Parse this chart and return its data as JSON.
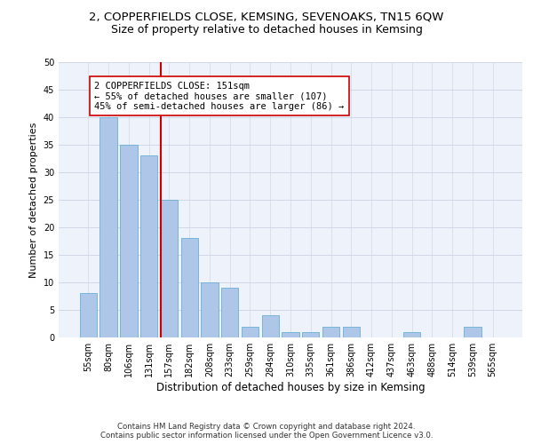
{
  "title1": "2, COPPERFIELDS CLOSE, KEMSING, SEVENOAKS, TN15 6QW",
  "title2": "Size of property relative to detached houses in Kemsing",
  "xlabel": "Distribution of detached houses by size in Kemsing",
  "ylabel": "Number of detached properties",
  "footnote1": "Contains HM Land Registry data © Crown copyright and database right 2024.",
  "footnote2": "Contains public sector information licensed under the Open Government Licence v3.0.",
  "categories": [
    "55sqm",
    "80sqm",
    "106sqm",
    "131sqm",
    "157sqm",
    "182sqm",
    "208sqm",
    "233sqm",
    "259sqm",
    "284sqm",
    "310sqm",
    "335sqm",
    "361sqm",
    "386sqm",
    "412sqm",
    "437sqm",
    "463sqm",
    "488sqm",
    "514sqm",
    "539sqm",
    "565sqm"
  ],
  "values": [
    8,
    40,
    35,
    33,
    25,
    18,
    10,
    9,
    2,
    4,
    1,
    1,
    2,
    2,
    0,
    0,
    1,
    0,
    0,
    2,
    0
  ],
  "bar_color": "#aec6e8",
  "bar_edge_color": "#6aaed6",
  "red_line_index": 4,
  "red_line_color": "#cc0000",
  "annotation_line1": "2 COPPERFIELDS CLOSE: 151sqm",
  "annotation_line2": "← 55% of detached houses are smaller (107)",
  "annotation_line3": "45% of semi-detached houses are larger (86) →",
  "annotation_box_color": "#ffffff",
  "annotation_box_edge": "#cc0000",
  "ylim": [
    0,
    50
  ],
  "yticks": [
    0,
    5,
    10,
    15,
    20,
    25,
    30,
    35,
    40,
    45,
    50
  ],
  "grid_color": "#d0d8e8",
  "bg_color": "#eef2fa",
  "title1_fontsize": 9.5,
  "title2_fontsize": 9,
  "xlabel_fontsize": 8.5,
  "ylabel_fontsize": 8,
  "tick_fontsize": 7,
  "annot_fontsize": 7.5
}
